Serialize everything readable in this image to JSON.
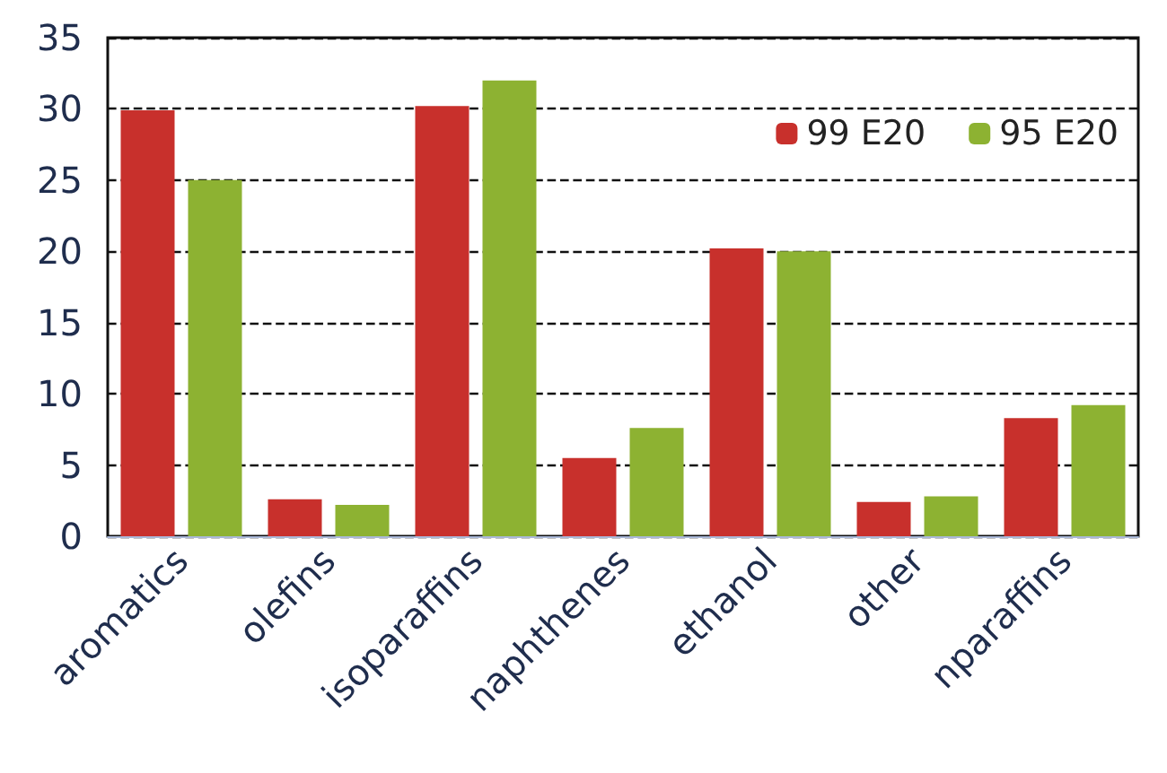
{
  "chart_data": {
    "type": "bar",
    "categories": [
      "aromatics",
      "olefins",
      "isoparaffins",
      "naphthenes",
      "ethanol",
      "other",
      "nparaffins"
    ],
    "series": [
      {
        "name": "99 E20",
        "color": "#c8302c",
        "values": [
          29.9,
          2.6,
          30.2,
          5.5,
          20.2,
          2.4,
          8.3
        ]
      },
      {
        "name": "95 E20",
        "color": "#8db232",
        "values": [
          25.0,
          2.2,
          32.0,
          7.6,
          20.0,
          2.8,
          9.2
        ]
      }
    ],
    "ylim": [
      0,
      35
    ],
    "yticks": [
      0,
      5,
      10,
      15,
      20,
      25,
      30,
      35
    ],
    "grid": "y",
    "legend": "top right"
  }
}
